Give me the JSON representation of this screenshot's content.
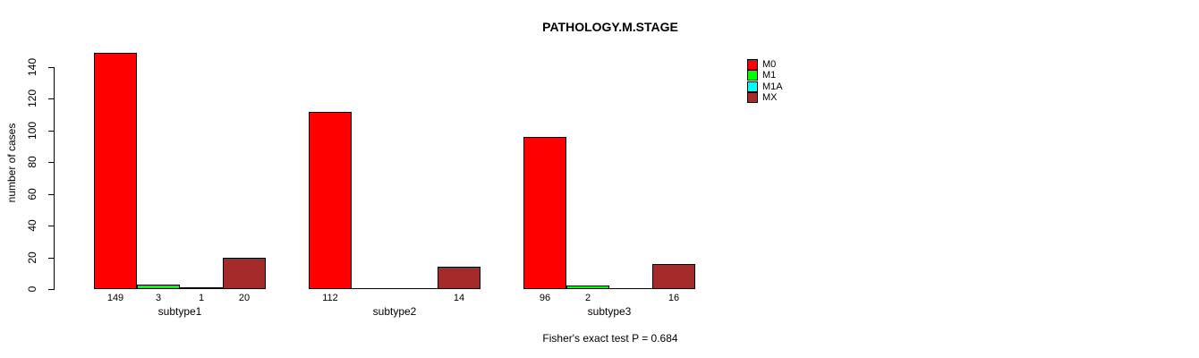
{
  "chart_data": {
    "type": "bar",
    "title": "PATHOLOGY.M.STAGE",
    "xlabel": "",
    "ylabel": "number of cases",
    "ylim": [
      0,
      140
    ],
    "yticks": [
      0,
      20,
      40,
      60,
      80,
      100,
      120,
      140
    ],
    "categories": [
      "subtype1",
      "subtype2",
      "subtype3"
    ],
    "series": [
      {
        "name": "M0",
        "color": "#FF0000",
        "values": [
          149,
          112,
          96
        ]
      },
      {
        "name": "M1",
        "color": "#00FF00",
        "values": [
          3,
          0,
          2
        ]
      },
      {
        "name": "M1A",
        "color": "#00FFFF",
        "values": [
          1,
          0,
          0
        ]
      },
      {
        "name": "MX",
        "color": "#A52A2A",
        "values": [
          20,
          14,
          16
        ]
      }
    ],
    "zero_values_unlabeled": true,
    "grid": false,
    "legend_position": "top-right",
    "annotation": "Fisher's exact test P = 0.684"
  }
}
